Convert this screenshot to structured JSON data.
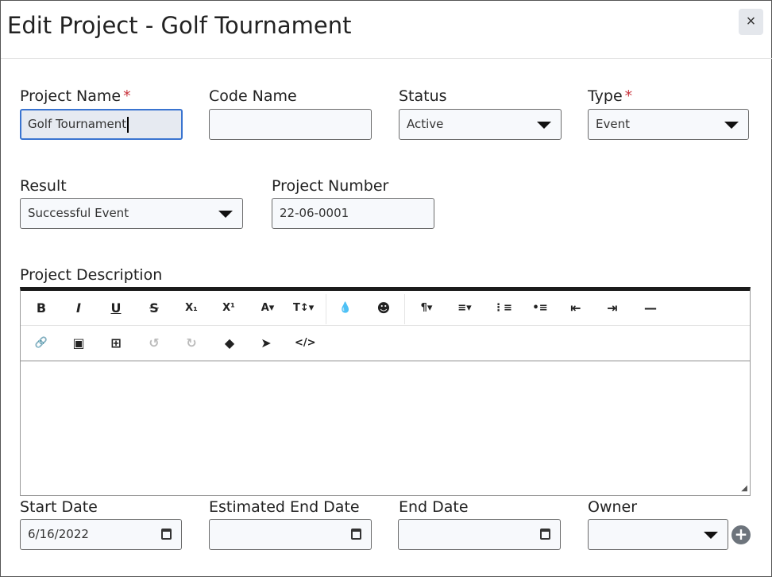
{
  "dialog": {
    "title": "Edit Project - Golf Tournament",
    "close_label": "×"
  },
  "fields": {
    "project_name": {
      "label": "Project Name",
      "required": "*",
      "value": "Golf Tournament"
    },
    "code_name": {
      "label": "Code Name",
      "value": ""
    },
    "status": {
      "label": "Status",
      "value": "Active"
    },
    "type": {
      "label": "Type",
      "required": "*",
      "value": "Event"
    },
    "result": {
      "label": "Result",
      "value": "Successful Event"
    },
    "project_number": {
      "label": "Project Number",
      "value": "22-06-0001"
    },
    "description": {
      "label": "Project Description",
      "value": ""
    },
    "start_date": {
      "label": "Start Date",
      "value": "6/16/2022"
    },
    "estimated_end_date": {
      "label": "Estimated End Date",
      "value": ""
    },
    "end_date": {
      "label": "End Date",
      "value": ""
    },
    "owner": {
      "label": "Owner",
      "value": "",
      "add_label": "+"
    }
  },
  "toolbar": {
    "row1": [
      {
        "name": "bold",
        "glyph": "B"
      },
      {
        "name": "italic",
        "glyph": "I"
      },
      {
        "name": "underline",
        "glyph": "U"
      },
      {
        "name": "strikethrough",
        "glyph": "S"
      },
      {
        "name": "subscript",
        "glyph": "X₁"
      },
      {
        "name": "superscript",
        "glyph": "X¹"
      },
      {
        "name": "font-color",
        "glyph": "A▾"
      },
      {
        "name": "font-size",
        "glyph": "T↕▾"
      },
      {
        "name": "color-drop",
        "glyph": "💧"
      },
      {
        "name": "emoji",
        "glyph": "☻"
      },
      {
        "name": "paragraph",
        "glyph": "¶▾"
      },
      {
        "name": "align",
        "glyph": "≡▾"
      },
      {
        "name": "ordered-list",
        "glyph": "⋮≡"
      },
      {
        "name": "unordered-list",
        "glyph": "•≡"
      },
      {
        "name": "outdent",
        "glyph": "⇤"
      },
      {
        "name": "indent",
        "glyph": "⇥"
      },
      {
        "name": "horizontal-rule",
        "glyph": "—"
      }
    ],
    "row2": [
      {
        "name": "link",
        "glyph": "🔗"
      },
      {
        "name": "image",
        "glyph": "▣"
      },
      {
        "name": "table",
        "glyph": "⊞"
      },
      {
        "name": "undo",
        "glyph": "↺",
        "disabled": true
      },
      {
        "name": "redo",
        "glyph": "↻",
        "disabled": true
      },
      {
        "name": "eraser",
        "glyph": "◆"
      },
      {
        "name": "select-pointer",
        "glyph": "➤"
      },
      {
        "name": "code-view",
        "glyph": "</>"
      }
    ]
  }
}
